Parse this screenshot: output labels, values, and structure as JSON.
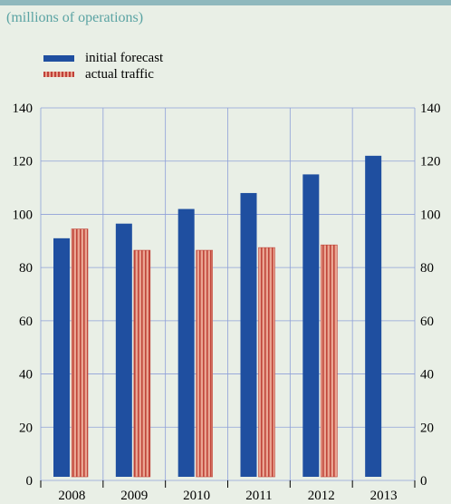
{
  "unit_label": "(millions of operations)",
  "chart_data": {
    "type": "bar",
    "categories": [
      "2008",
      "2009",
      "2010",
      "2011",
      "2012",
      "2013"
    ],
    "series": [
      {
        "name": "initial forecast",
        "values": [
          91,
          96.5,
          102,
          108,
          115,
          122
        ],
        "color": "#1f4fa0"
      },
      {
        "name": "actual traffic",
        "values": [
          94.5,
          86.5,
          86.5,
          87.5,
          88.5,
          null
        ],
        "color": "#d98c7c"
      }
    ],
    "yticks": [
      0,
      20,
      40,
      60,
      80,
      100,
      120,
      140
    ],
    "ylim": [
      0,
      140
    ],
    "grid": true,
    "legend": "top-left",
    "title": "",
    "xlabel": "",
    "ylabel": ""
  }
}
